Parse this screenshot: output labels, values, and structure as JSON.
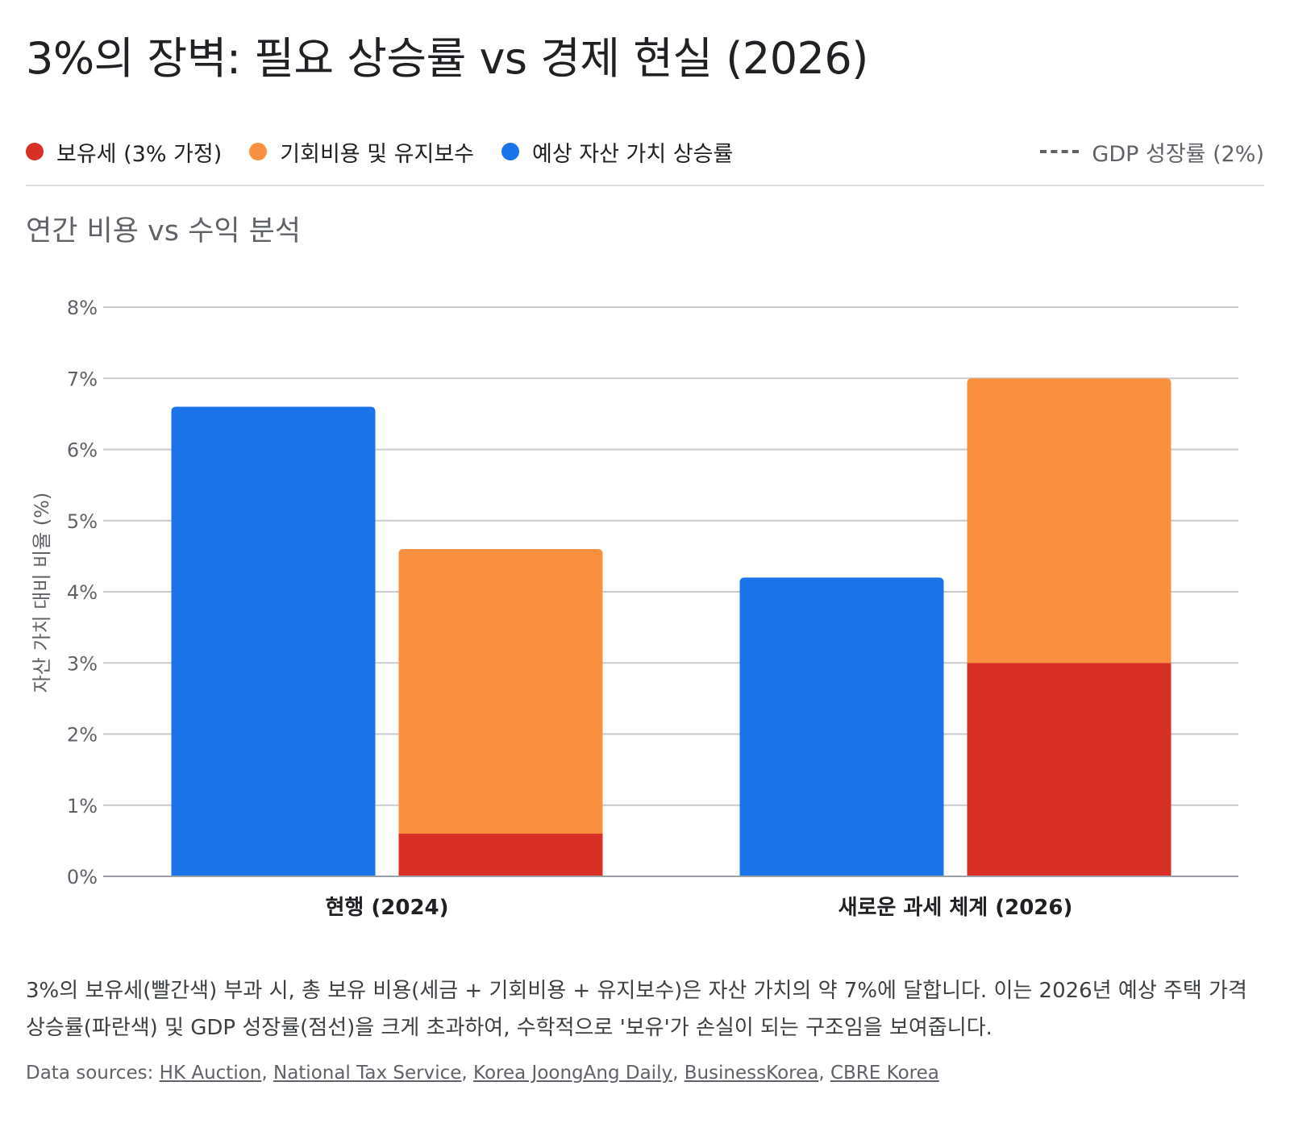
{
  "title": "3%의 장벽: 필요 상승률 vs 경제 현실 (2026)",
  "subtitle": "연간 비용 vs 수익 분석",
  "colors": {
    "holding_tax": "#d93025",
    "opportunity_cost": "#f9903f",
    "expected_growth": "#1a73e8",
    "gdp": "#5f6368",
    "grid": "#c8cacd",
    "text": "#202124",
    "muted": "#5f6368"
  },
  "legend": [
    {
      "label": "보유세 (3% 가정)",
      "color": "#d93025",
      "icon": "circle-dot"
    },
    {
      "label": "기회비용 및 유지보수",
      "color": "#f9903f",
      "icon": "circle-dot"
    },
    {
      "label": "예상 자산 가치 상승률",
      "color": "#1a73e8",
      "icon": "circle-dot"
    },
    {
      "label": "GDP 성장률 (2%)",
      "color": "#5f6368",
      "icon": "dashed-line"
    }
  ],
  "chart_data": {
    "type": "bar",
    "stacked_groups": true,
    "title": "연간 비용 vs 수익 분석",
    "xlabel": "",
    "ylabel": "자산 가치 대비 비율 (%)",
    "ylim": [
      0,
      8
    ],
    "yticks": [
      0,
      1,
      2,
      3,
      4,
      5,
      6,
      7,
      8
    ],
    "ytick_labels": [
      "0%",
      "1%",
      "2%",
      "3%",
      "4%",
      "5%",
      "6%",
      "7%",
      "8%"
    ],
    "grid": true,
    "categories": [
      "현행 (2024)",
      "새로운 과세 체계 (2026)"
    ],
    "series": [
      {
        "name": "예상 자산 가치 상승률",
        "stack": "growth",
        "values": [
          6.6,
          4.2
        ]
      },
      {
        "name": "보유세 (3% 가정)",
        "stack": "cost",
        "values": [
          0.6,
          3.0
        ]
      },
      {
        "name": "기회비용 및 유지보수",
        "stack": "cost",
        "values": [
          4.0,
          4.0
        ]
      }
    ],
    "reference_line": {
      "name": "GDP 성장률 (2%)",
      "value": 2,
      "shown_in_plot": false
    }
  },
  "caption": "3%의 보유세(빨간색) 부과 시, 총 보유 비용(세금 + 기회비용 + 유지보수)은 자산 가치의 약 7%에 달합니다. 이는 2026년 예상 주택 가격 상승률(파란색) 및 GDP 성장률(점선)을 크게 초과하여, 수학적으로 '보유'가 손실이 되는 구조임을 보여줍니다.",
  "sources": {
    "prefix": "Data sources:",
    "links": [
      "HK Auction",
      "National Tax Service",
      "Korea JoongAng Daily",
      "BusinessKorea",
      "CBRE Korea"
    ]
  }
}
